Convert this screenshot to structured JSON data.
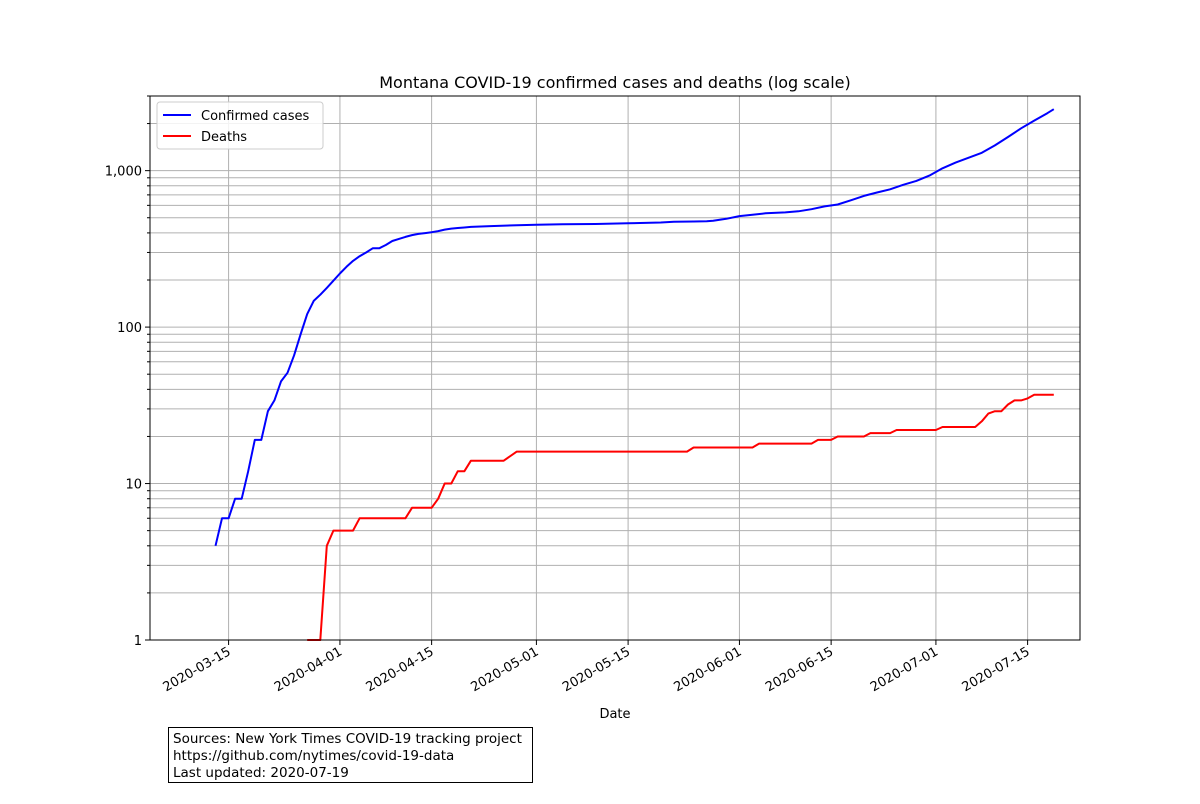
{
  "chart_data": {
    "type": "line",
    "title": "Montana COVID-19 confirmed cases and deaths (log scale)",
    "xlabel": "Date",
    "ylabel": "",
    "yscale": "log",
    "ylim": [
      1,
      3000
    ],
    "xlim": [
      "2020-03-03",
      "2020-07-23"
    ],
    "grid": true,
    "legend_position": "top-left",
    "x_ticks": [
      "2020-03-15",
      "2020-04-01",
      "2020-04-15",
      "2020-05-01",
      "2020-05-15",
      "2020-06-01",
      "2020-06-15",
      "2020-07-01",
      "2020-07-15"
    ],
    "y_tick_labels": [
      {
        "value": 1,
        "label": "1"
      },
      {
        "value": 10,
        "label": "10"
      },
      {
        "value": 100,
        "label": "100"
      },
      {
        "value": 1000,
        "label": "1,000"
      }
    ],
    "series": [
      {
        "name": "Confirmed cases",
        "color": "#0000ff",
        "points": [
          [
            "2020-03-13",
            4
          ],
          [
            "2020-03-14",
            6
          ],
          [
            "2020-03-15",
            6
          ],
          [
            "2020-03-16",
            8
          ],
          [
            "2020-03-17",
            8
          ],
          [
            "2020-03-18",
            12
          ],
          [
            "2020-03-19",
            19
          ],
          [
            "2020-03-20",
            19
          ],
          [
            "2020-03-21",
            29
          ],
          [
            "2020-03-22",
            34
          ],
          [
            "2020-03-23",
            45
          ],
          [
            "2020-03-24",
            51
          ],
          [
            "2020-03-25",
            66
          ],
          [
            "2020-03-26",
            90
          ],
          [
            "2020-03-27",
            121
          ],
          [
            "2020-03-28",
            147
          ],
          [
            "2020-03-29",
            161
          ],
          [
            "2020-03-30",
            178
          ],
          [
            "2020-03-31",
            198
          ],
          [
            "2020-04-01",
            220
          ],
          [
            "2020-04-02",
            243
          ],
          [
            "2020-04-03",
            265
          ],
          [
            "2020-04-04",
            284
          ],
          [
            "2020-04-05",
            300
          ],
          [
            "2020-04-06",
            319
          ],
          [
            "2020-04-07",
            319
          ],
          [
            "2020-04-08",
            335
          ],
          [
            "2020-04-09",
            355
          ],
          [
            "2020-04-10",
            366
          ],
          [
            "2020-04-11",
            377
          ],
          [
            "2020-04-12",
            387
          ],
          [
            "2020-04-13",
            394
          ],
          [
            "2020-04-14",
            399
          ],
          [
            "2020-04-15",
            404
          ],
          [
            "2020-04-16",
            411
          ],
          [
            "2020-04-17",
            420
          ],
          [
            "2020-04-18",
            426
          ],
          [
            "2020-04-19",
            430
          ],
          [
            "2020-04-20",
            433
          ],
          [
            "2020-04-21",
            437
          ],
          [
            "2020-04-24",
            442
          ],
          [
            "2020-04-28",
            448
          ],
          [
            "2020-05-01",
            451
          ],
          [
            "2020-05-05",
            454
          ],
          [
            "2020-05-10",
            456
          ],
          [
            "2020-05-15",
            461
          ],
          [
            "2020-05-20",
            466
          ],
          [
            "2020-05-22",
            471
          ],
          [
            "2020-05-25",
            473
          ],
          [
            "2020-05-27",
            475
          ],
          [
            "2020-05-28",
            479
          ],
          [
            "2020-05-30",
            492
          ],
          [
            "2020-06-01",
            512
          ],
          [
            "2020-06-03",
            522
          ],
          [
            "2020-06-05",
            534
          ],
          [
            "2020-06-08",
            541
          ],
          [
            "2020-06-10",
            550
          ],
          [
            "2020-06-12",
            567
          ],
          [
            "2020-06-14",
            591
          ],
          [
            "2020-06-16",
            608
          ],
          [
            "2020-06-18",
            646
          ],
          [
            "2020-06-20",
            690
          ],
          [
            "2020-06-22",
            725
          ],
          [
            "2020-06-24",
            760
          ],
          [
            "2020-06-26",
            812
          ],
          [
            "2020-06-28",
            860
          ],
          [
            "2020-06-30",
            930
          ],
          [
            "2020-07-02",
            1035
          ],
          [
            "2020-07-04",
            1125
          ],
          [
            "2020-07-06",
            1210
          ],
          [
            "2020-07-08",
            1300
          ],
          [
            "2020-07-10",
            1450
          ],
          [
            "2020-07-12",
            1640
          ],
          [
            "2020-07-14",
            1865
          ],
          [
            "2020-07-16",
            2090
          ],
          [
            "2020-07-18",
            2330
          ],
          [
            "2020-07-19",
            2470
          ]
        ]
      },
      {
        "name": "Deaths",
        "color": "#ff0000",
        "points": [
          [
            "2020-03-27",
            1
          ],
          [
            "2020-03-29",
            1
          ],
          [
            "2020-03-30",
            4
          ],
          [
            "2020-03-31",
            5
          ],
          [
            "2020-04-01",
            5
          ],
          [
            "2020-04-02",
            5
          ],
          [
            "2020-04-03",
            5
          ],
          [
            "2020-04-04",
            6
          ],
          [
            "2020-04-11",
            6
          ],
          [
            "2020-04-12",
            7
          ],
          [
            "2020-04-15",
            7
          ],
          [
            "2020-04-16",
            8
          ],
          [
            "2020-04-17",
            10
          ],
          [
            "2020-04-18",
            10
          ],
          [
            "2020-04-19",
            12
          ],
          [
            "2020-04-20",
            12
          ],
          [
            "2020-04-21",
            14
          ],
          [
            "2020-04-26",
            14
          ],
          [
            "2020-04-28",
            16
          ],
          [
            "2020-05-24",
            16
          ],
          [
            "2020-05-25",
            17
          ],
          [
            "2020-06-03",
            17
          ],
          [
            "2020-06-04",
            18
          ],
          [
            "2020-06-12",
            18
          ],
          [
            "2020-06-13",
            19
          ],
          [
            "2020-06-15",
            19
          ],
          [
            "2020-06-16",
            20
          ],
          [
            "2020-06-20",
            20
          ],
          [
            "2020-06-21",
            21
          ],
          [
            "2020-06-24",
            21
          ],
          [
            "2020-06-25",
            22
          ],
          [
            "2020-07-01",
            22
          ],
          [
            "2020-07-02",
            23
          ],
          [
            "2020-07-07",
            23
          ],
          [
            "2020-07-08",
            25
          ],
          [
            "2020-07-09",
            28
          ],
          [
            "2020-07-10",
            29
          ],
          [
            "2020-07-11",
            29
          ],
          [
            "2020-07-12",
            32
          ],
          [
            "2020-07-13",
            34
          ],
          [
            "2020-07-14",
            34
          ],
          [
            "2020-07-15",
            35
          ],
          [
            "2020-07-16",
            37
          ],
          [
            "2020-07-19",
            37
          ]
        ]
      }
    ]
  },
  "source_note": {
    "line1": "Sources: New York Times COVID-19 tracking project",
    "line2": "https://github.com/nytimes/covid-19-data",
    "line3": "Last updated: 2020-07-19"
  }
}
